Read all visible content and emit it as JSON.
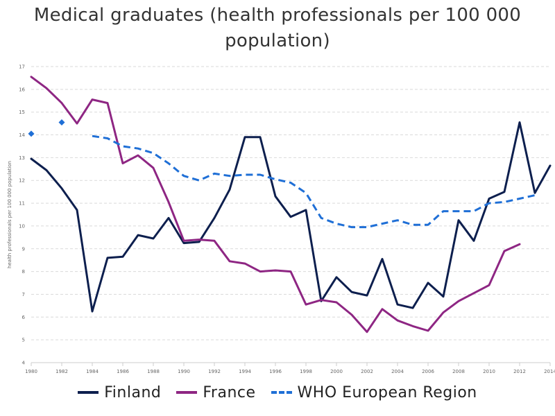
{
  "chart_data": {
    "type": "line",
    "title": "Medical graduates (health professionals per 100 000 population)",
    "ylabel": "health professionals per 100 000 population",
    "xlabel": "",
    "xlim": [
      1980,
      2014
    ],
    "ylim": [
      4,
      17
    ],
    "x_ticks": [
      1980,
      1982,
      1984,
      1986,
      1988,
      1990,
      1992,
      1994,
      1996,
      1998,
      2000,
      2002,
      2004,
      2006,
      2008,
      2010,
      2012,
      2014
    ],
    "y_ticks": [
      4,
      5,
      6,
      7,
      8,
      9,
      10,
      11,
      12,
      13,
      14,
      15,
      16,
      17
    ],
    "grid": "horizontal dashed",
    "legend_position": "bottom",
    "series": [
      {
        "name": "Finland",
        "color": "#0d1f4e",
        "style": "solid",
        "x": [
          1980,
          1981,
          1982,
          1983,
          1984,
          1985,
          1986,
          1987,
          1988,
          1989,
          1990,
          1991,
          1992,
          1993,
          1994,
          1995,
          1996,
          1997,
          1998,
          1999,
          2000,
          2001,
          2002,
          2003,
          2004,
          2005,
          2006,
          2007,
          2008,
          2009,
          2010,
          2011,
          2012,
          2013,
          2014
        ],
        "values": [
          12.95,
          12.45,
          11.65,
          10.7,
          6.25,
          8.6,
          8.65,
          9.6,
          9.45,
          10.35,
          9.25,
          9.3,
          10.35,
          11.6,
          13.9,
          13.9,
          11.3,
          10.4,
          10.7,
          6.7,
          7.75,
          7.1,
          6.95,
          8.55,
          6.55,
          6.4,
          7.5,
          6.9,
          10.25,
          9.35,
          11.2,
          11.5,
          14.55,
          11.45,
          12.65
        ]
      },
      {
        "name": "France",
        "color": "#8e2683",
        "style": "solid",
        "x": [
          1980,
          1981,
          1982,
          1983,
          1984,
          1985,
          1986,
          1987,
          1988,
          1989,
          1990,
          1991,
          1992,
          1993,
          1994,
          1995,
          1996,
          1997,
          1998,
          1999,
          2000,
          2001,
          2002,
          2003,
          2004,
          2005,
          2006,
          2007,
          2008,
          2009,
          2010,
          2011,
          2012
        ],
        "values": [
          16.55,
          16.05,
          15.4,
          14.5,
          15.55,
          15.4,
          12.75,
          13.1,
          12.55,
          11.05,
          9.35,
          9.4,
          9.35,
          8.45,
          8.35,
          8.0,
          8.05,
          8.0,
          6.55,
          6.75,
          6.65,
          6.1,
          5.35,
          6.35,
          5.85,
          5.6,
          5.4,
          6.2,
          6.7,
          7.05,
          7.4,
          8.9,
          9.2
        ]
      },
      {
        "name": "WHO European Region",
        "color": "#1f6fd6",
        "style": "dashed",
        "x": [
          1984,
          1985,
          1986,
          1987,
          1988,
          1989,
          1990,
          1991,
          1992,
          1993,
          1994,
          1995,
          1996,
          1997,
          1998,
          1999,
          2000,
          2001,
          2002,
          2003,
          2004,
          2005,
          2006,
          2007,
          2008,
          2009,
          2010,
          2011,
          2012,
          2013
        ],
        "values": [
          13.95,
          13.85,
          13.5,
          13.4,
          13.2,
          12.75,
          12.2,
          12.0,
          12.3,
          12.2,
          12.25,
          12.25,
          12.05,
          11.9,
          11.45,
          10.35,
          10.1,
          9.95,
          9.95,
          10.1,
          10.25,
          10.05,
          10.05,
          10.65,
          10.65,
          10.65,
          11.0,
          11.05,
          11.2,
          11.35
        ],
        "isolated_points": [
          {
            "x": 1980,
            "y": 14.05
          },
          {
            "x": 1982,
            "y": 14.55
          }
        ]
      }
    ]
  }
}
